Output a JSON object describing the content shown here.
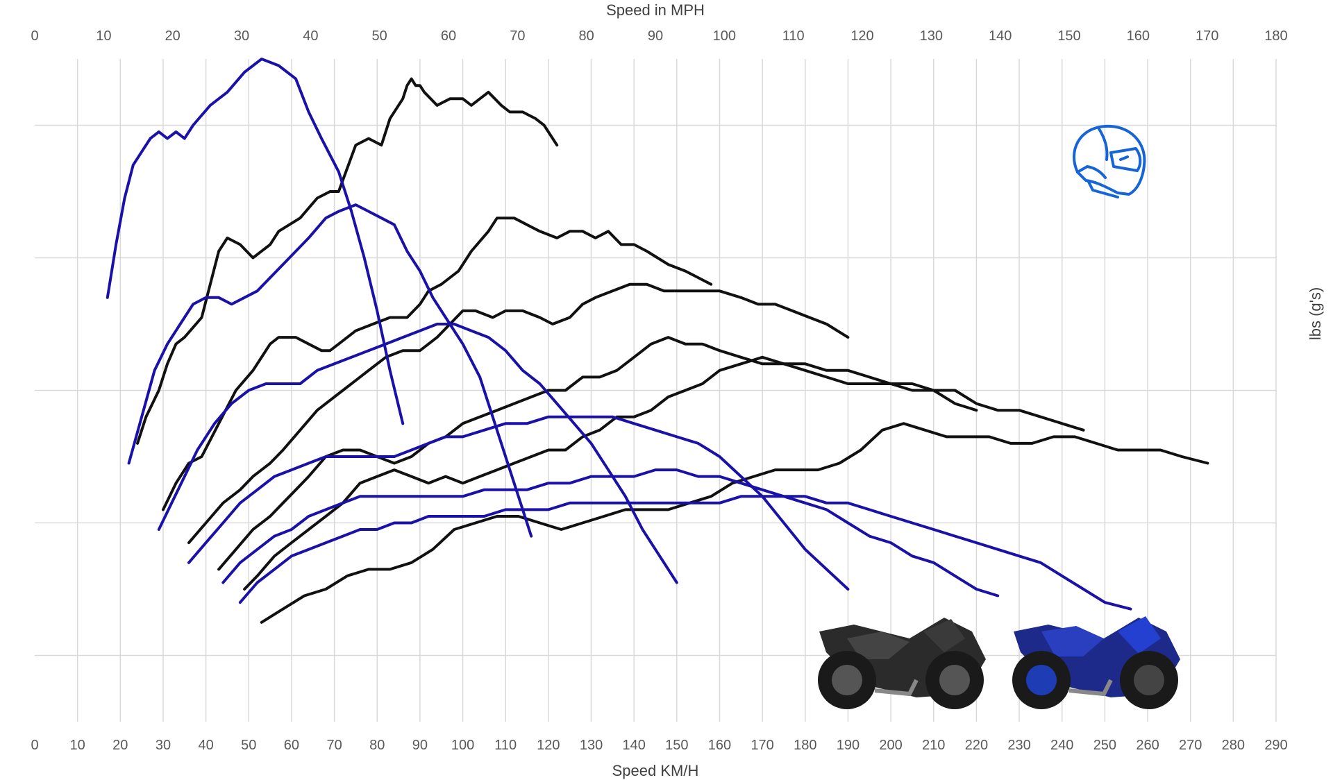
{
  "chart_data": {
    "type": "line",
    "title": "",
    "x_top": {
      "label": "Speed in MPH",
      "ticks": [
        0,
        10,
        20,
        30,
        40,
        50,
        60,
        70,
        80,
        90,
        100,
        110,
        120,
        130,
        140,
        150,
        160,
        170,
        180
      ],
      "range": [
        0,
        180
      ]
    },
    "x_bottom": {
      "label": "Speed KM/H",
      "ticks": [
        0,
        10,
        20,
        30,
        40,
        50,
        60,
        70,
        80,
        90,
        100,
        110,
        120,
        130,
        140,
        150,
        160,
        170,
        180,
        190,
        200,
        210,
        220,
        230,
        240,
        250,
        260,
        270,
        280,
        290
      ],
      "range": [
        0,
        290
      ]
    },
    "y": {
      "label": "lbs (g's)",
      "tick_labels_shown": false,
      "range": [
        0,
        1
      ],
      "gridlines": [
        0.1,
        0.3,
        0.5,
        0.7,
        0.9
      ]
    },
    "grid": true,
    "series_colors": {
      "black": "#111111",
      "blue": "#1a12a8"
    },
    "series": [
      {
        "color": "black",
        "x_kmh": [
          24,
          26,
          29,
          31,
          33,
          35,
          39,
          43,
          45,
          48,
          51,
          55,
          57,
          62,
          66,
          69,
          71,
          75,
          78,
          81,
          83,
          86,
          87,
          88,
          89,
          90,
          91,
          94,
          97,
          100,
          102,
          104,
          106,
          109,
          111,
          114,
          117,
          119,
          122
        ],
        "y": [
          0.42,
          0.46,
          0.5,
          0.54,
          0.57,
          0.58,
          0.61,
          0.71,
          0.73,
          0.72,
          0.7,
          0.72,
          0.74,
          0.76,
          0.79,
          0.8,
          0.8,
          0.87,
          0.88,
          0.87,
          0.91,
          0.94,
          0.96,
          0.97,
          0.96,
          0.96,
          0.95,
          0.93,
          0.94,
          0.94,
          0.93,
          0.94,
          0.95,
          0.93,
          0.92,
          0.92,
          0.91,
          0.9,
          0.87
        ]
      },
      {
        "color": "black",
        "x_kmh": [
          30,
          33,
          36,
          39,
          43,
          47,
          51,
          55,
          57,
          61,
          64,
          67,
          69,
          71,
          75,
          79,
          83,
          87,
          90,
          92,
          95,
          99,
          102,
          106,
          108,
          112,
          115,
          118,
          122,
          125,
          128,
          131,
          134,
          137,
          140,
          143,
          148,
          152,
          155,
          158
        ],
        "y": [
          0.32,
          0.36,
          0.39,
          0.4,
          0.45,
          0.5,
          0.53,
          0.57,
          0.58,
          0.58,
          0.57,
          0.56,
          0.56,
          0.57,
          0.59,
          0.6,
          0.61,
          0.61,
          0.63,
          0.65,
          0.66,
          0.68,
          0.71,
          0.74,
          0.76,
          0.76,
          0.75,
          0.74,
          0.73,
          0.74,
          0.74,
          0.73,
          0.74,
          0.72,
          0.72,
          0.71,
          0.69,
          0.68,
          0.67,
          0.66
        ]
      },
      {
        "color": "black",
        "x_kmh": [
          36,
          40,
          44,
          48,
          51,
          55,
          58,
          62,
          66,
          70,
          74,
          78,
          82,
          86,
          90,
          94,
          97,
          100,
          103,
          107,
          110,
          114,
          118,
          121,
          125,
          128,
          131,
          135,
          139,
          143,
          147,
          151,
          155,
          160,
          165,
          169,
          173,
          177,
          181,
          185,
          190
        ],
        "y": [
          0.27,
          0.3,
          0.33,
          0.35,
          0.37,
          0.39,
          0.41,
          0.44,
          0.47,
          0.49,
          0.51,
          0.53,
          0.55,
          0.56,
          0.56,
          0.58,
          0.6,
          0.62,
          0.62,
          0.61,
          0.62,
          0.62,
          0.61,
          0.6,
          0.61,
          0.63,
          0.64,
          0.65,
          0.66,
          0.66,
          0.65,
          0.65,
          0.65,
          0.65,
          0.64,
          0.63,
          0.63,
          0.62,
          0.61,
          0.6,
          0.58
        ]
      },
      {
        "color": "black",
        "x_kmh": [
          43,
          47,
          51,
          55,
          58,
          61,
          64,
          68,
          72,
          76,
          80,
          84,
          88,
          92,
          96,
          100,
          104,
          108,
          112,
          116,
          120,
          124,
          128,
          132,
          136,
          140,
          144,
          148,
          152,
          156,
          160,
          165,
          170,
          175,
          180,
          185,
          190,
          195,
          200,
          205,
          210,
          215,
          220
        ],
        "y": [
          0.23,
          0.26,
          0.29,
          0.31,
          0.33,
          0.35,
          0.37,
          0.4,
          0.41,
          0.41,
          0.4,
          0.39,
          0.4,
          0.42,
          0.43,
          0.45,
          0.46,
          0.47,
          0.48,
          0.49,
          0.5,
          0.5,
          0.52,
          0.52,
          0.53,
          0.55,
          0.57,
          0.58,
          0.57,
          0.57,
          0.56,
          0.55,
          0.54,
          0.54,
          0.54,
          0.53,
          0.53,
          0.52,
          0.51,
          0.51,
          0.5,
          0.48,
          0.47
        ]
      },
      {
        "color": "black",
        "x_kmh": [
          49,
          52,
          56,
          60,
          64,
          68,
          72,
          76,
          80,
          84,
          88,
          92,
          96,
          100,
          104,
          108,
          112,
          116,
          120,
          124,
          128,
          132,
          136,
          140,
          144,
          148,
          152,
          156,
          160,
          165,
          170,
          175,
          180,
          185,
          190,
          195,
          200,
          205,
          210,
          215,
          220,
          225,
          230,
          235,
          240,
          245
        ],
        "y": [
          0.2,
          0.22,
          0.25,
          0.27,
          0.29,
          0.31,
          0.33,
          0.36,
          0.37,
          0.38,
          0.37,
          0.36,
          0.37,
          0.36,
          0.37,
          0.38,
          0.39,
          0.4,
          0.41,
          0.41,
          0.43,
          0.44,
          0.46,
          0.46,
          0.47,
          0.49,
          0.5,
          0.51,
          0.53,
          0.54,
          0.55,
          0.54,
          0.53,
          0.52,
          0.51,
          0.51,
          0.51,
          0.5,
          0.5,
          0.5,
          0.48,
          0.47,
          0.47,
          0.46,
          0.45,
          0.44
        ]
      },
      {
        "color": "black",
        "x_kmh": [
          53,
          58,
          63,
          68,
          73,
          78,
          83,
          88,
          93,
          98,
          103,
          108,
          113,
          118,
          123,
          128,
          133,
          138,
          143,
          148,
          153,
          158,
          163,
          168,
          173,
          178,
          183,
          188,
          193,
          198,
          203,
          208,
          213,
          218,
          223,
          228,
          233,
          238,
          243,
          248,
          253,
          258,
          263,
          268,
          274
        ],
        "y": [
          0.15,
          0.17,
          0.19,
          0.2,
          0.22,
          0.23,
          0.23,
          0.24,
          0.26,
          0.29,
          0.3,
          0.31,
          0.31,
          0.3,
          0.29,
          0.3,
          0.31,
          0.32,
          0.32,
          0.32,
          0.33,
          0.34,
          0.36,
          0.37,
          0.38,
          0.38,
          0.38,
          0.39,
          0.41,
          0.44,
          0.45,
          0.44,
          0.43,
          0.43,
          0.43,
          0.42,
          0.42,
          0.43,
          0.43,
          0.42,
          0.41,
          0.41,
          0.41,
          0.4,
          0.39
        ]
      },
      {
        "color": "blue",
        "x_kmh": [
          17,
          19,
          21,
          23,
          25,
          27,
          29,
          31,
          33,
          35,
          37,
          41,
          45,
          49,
          53,
          57,
          61,
          64,
          67,
          71,
          74,
          77,
          80,
          83,
          86
        ],
        "y": [
          0.64,
          0.72,
          0.79,
          0.84,
          0.86,
          0.88,
          0.89,
          0.88,
          0.89,
          0.88,
          0.9,
          0.93,
          0.95,
          0.98,
          1.0,
          0.99,
          0.97,
          0.92,
          0.88,
          0.83,
          0.77,
          0.7,
          0.62,
          0.53,
          0.45
        ]
      },
      {
        "color": "blue",
        "x_kmh": [
          22,
          25,
          28,
          31,
          34,
          37,
          40,
          43,
          46,
          49,
          52,
          55,
          58,
          61,
          64,
          68,
          71,
          75,
          78,
          81,
          84,
          87,
          90,
          93,
          96,
          100,
          104,
          107,
          110,
          113,
          116
        ],
        "y": [
          0.39,
          0.46,
          0.53,
          0.57,
          0.6,
          0.63,
          0.64,
          0.64,
          0.63,
          0.64,
          0.65,
          0.67,
          0.69,
          0.71,
          0.73,
          0.76,
          0.77,
          0.78,
          0.77,
          0.76,
          0.75,
          0.71,
          0.68,
          0.64,
          0.61,
          0.57,
          0.52,
          0.46,
          0.4,
          0.34,
          0.28
        ]
      },
      {
        "color": "blue",
        "x_kmh": [
          29,
          32,
          35,
          38,
          42,
          46,
          50,
          54,
          58,
          62,
          66,
          70,
          74,
          78,
          82,
          86,
          90,
          94,
          98,
          102,
          106,
          110,
          114,
          118,
          122,
          126,
          130,
          134,
          138,
          142,
          146,
          150
        ],
        "y": [
          0.29,
          0.33,
          0.37,
          0.41,
          0.45,
          0.48,
          0.5,
          0.51,
          0.51,
          0.51,
          0.53,
          0.54,
          0.55,
          0.56,
          0.57,
          0.58,
          0.59,
          0.6,
          0.6,
          0.59,
          0.58,
          0.56,
          0.53,
          0.51,
          0.48,
          0.45,
          0.42,
          0.38,
          0.34,
          0.29,
          0.25,
          0.21
        ]
      },
      {
        "color": "blue",
        "x_kmh": [
          36,
          40,
          44,
          48,
          52,
          56,
          60,
          64,
          68,
          72,
          76,
          80,
          84,
          88,
          92,
          96,
          100,
          105,
          110,
          115,
          120,
          125,
          130,
          135,
          140,
          145,
          150,
          155,
          160,
          165,
          170,
          175,
          180,
          185,
          190
        ],
        "y": [
          0.24,
          0.27,
          0.3,
          0.33,
          0.35,
          0.37,
          0.38,
          0.39,
          0.4,
          0.4,
          0.4,
          0.4,
          0.4,
          0.41,
          0.42,
          0.43,
          0.43,
          0.44,
          0.45,
          0.45,
          0.46,
          0.46,
          0.46,
          0.46,
          0.45,
          0.44,
          0.43,
          0.42,
          0.4,
          0.37,
          0.34,
          0.3,
          0.26,
          0.23,
          0.2
        ]
      },
      {
        "color": "blue",
        "x_kmh": [
          44,
          48,
          52,
          56,
          60,
          64,
          68,
          72,
          76,
          80,
          84,
          88,
          92,
          96,
          100,
          105,
          110,
          115,
          120,
          125,
          130,
          135,
          140,
          145,
          150,
          155,
          160,
          165,
          170,
          175,
          180,
          185,
          190,
          195,
          200,
          205,
          210,
          215,
          220,
          225
        ],
        "y": [
          0.21,
          0.24,
          0.26,
          0.28,
          0.29,
          0.31,
          0.32,
          0.33,
          0.34,
          0.34,
          0.34,
          0.34,
          0.34,
          0.34,
          0.34,
          0.35,
          0.35,
          0.35,
          0.36,
          0.36,
          0.37,
          0.37,
          0.37,
          0.38,
          0.38,
          0.37,
          0.37,
          0.36,
          0.35,
          0.34,
          0.33,
          0.32,
          0.3,
          0.28,
          0.27,
          0.25,
          0.24,
          0.22,
          0.2,
          0.19
        ]
      },
      {
        "color": "blue",
        "x_kmh": [
          48,
          52,
          56,
          60,
          64,
          68,
          72,
          76,
          80,
          84,
          88,
          92,
          96,
          100,
          105,
          110,
          115,
          120,
          125,
          130,
          135,
          140,
          145,
          150,
          155,
          160,
          165,
          170,
          175,
          180,
          185,
          190,
          195,
          200,
          205,
          210,
          215,
          220,
          225,
          230,
          235,
          240,
          245,
          250,
          256
        ],
        "y": [
          0.18,
          0.21,
          0.23,
          0.25,
          0.26,
          0.27,
          0.28,
          0.29,
          0.29,
          0.3,
          0.3,
          0.31,
          0.31,
          0.31,
          0.31,
          0.32,
          0.32,
          0.32,
          0.33,
          0.33,
          0.33,
          0.33,
          0.33,
          0.33,
          0.33,
          0.33,
          0.34,
          0.34,
          0.34,
          0.34,
          0.33,
          0.33,
          0.32,
          0.31,
          0.3,
          0.29,
          0.28,
          0.27,
          0.26,
          0.25,
          0.24,
          0.22,
          0.2,
          0.18,
          0.17
        ]
      }
    ]
  },
  "decor": {
    "icon": "motorcycle-helmet-icon",
    "icon_color": "#1565d8",
    "images": [
      "black-sport-motorcycle",
      "blue-sport-motorcycle"
    ]
  }
}
